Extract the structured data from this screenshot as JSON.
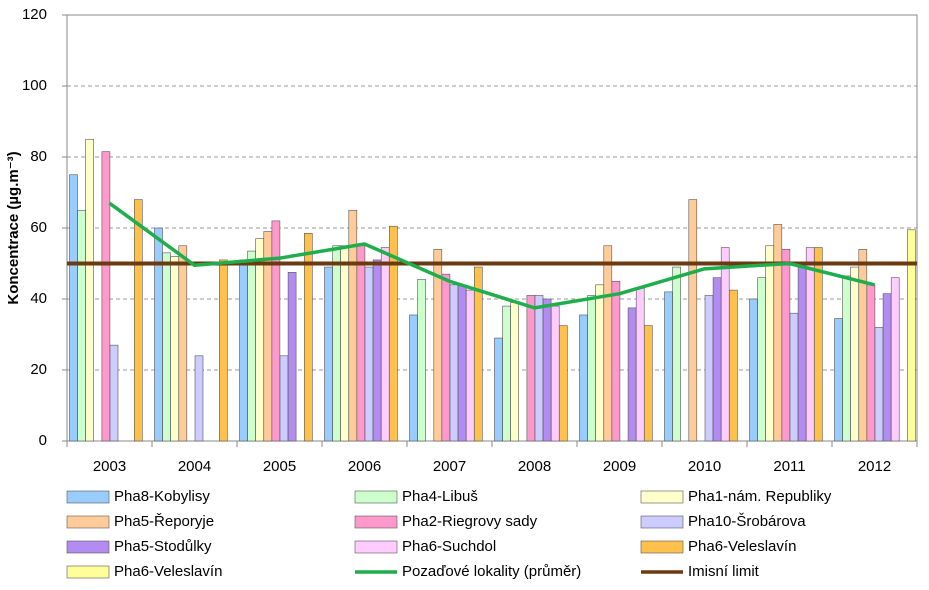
{
  "chart_data": {
    "type": "bar",
    "y_label": "Koncentrace (µg.m⁻³)",
    "categories": [
      "2003",
      "2004",
      "2005",
      "2006",
      "2007",
      "2008",
      "2009",
      "2010",
      "2011",
      "2012"
    ],
    "ylim": [
      0,
      120
    ],
    "yticks": [
      0,
      20,
      40,
      60,
      80,
      100,
      120
    ],
    "grid": true,
    "series": [
      {
        "name": "Pha8-Kobylisy",
        "color": "#99ccff",
        "values": [
          75,
          60,
          51,
          49,
          35.5,
          29,
          35.5,
          42,
          40,
          34.5
        ]
      },
      {
        "name": "Pha4-Libuš",
        "color": "#ccffcc",
        "values": [
          65,
          53,
          53.5,
          55,
          45.5,
          38,
          41,
          49,
          46,
          46.5
        ]
      },
      {
        "name": "Pha1-nám. Republiky",
        "color": "#ffffcc",
        "values": [
          85,
          52,
          57,
          55,
          null,
          39,
          44,
          null,
          55,
          49
        ]
      },
      {
        "name": "Pha5-Řeporyje",
        "color": "#ffcc99",
        "values": [
          null,
          55,
          59,
          65,
          54,
          null,
          55,
          68,
          61,
          54
        ]
      },
      {
        "name": "Pha2-Riegrovy sady",
        "color": "#ff99cc",
        "values": [
          81.5,
          null,
          62,
          55,
          47,
          41,
          45,
          null,
          54,
          44
        ]
      },
      {
        "name": "Pha10-Šrobárova",
        "color": "#ccccff",
        "values": [
          27,
          24,
          24,
          49,
          44,
          41,
          null,
          41,
          36,
          32
        ]
      },
      {
        "name": "Pha5-Stodůlky",
        "color": "#b38cf2",
        "values": [
          null,
          null,
          47.5,
          51,
          44,
          40,
          37.5,
          46,
          49,
          41.5
        ]
      },
      {
        "name": "Pha6-Suchdol",
        "color": "#ffccff",
        "values": [
          null,
          null,
          null,
          54.5,
          42.5,
          38,
          43,
          54.5,
          54.5,
          46
        ]
      },
      {
        "name": "Pha6-Veleslavín",
        "color": "#ffc04c",
        "values": [
          68,
          51,
          58.5,
          60.5,
          49,
          32.5,
          32.5,
          42.5,
          54.5,
          null
        ]
      },
      {
        "name": "Pha6-Veleslavín",
        "color": "#ffff99",
        "values": [
          null,
          null,
          null,
          null,
          null,
          null,
          null,
          null,
          null,
          59.5
        ]
      }
    ],
    "line": {
      "name": "Pozaďové lokality (průměr)",
      "color": "#1fae4b",
      "values": [
        67,
        49.5,
        51.5,
        55.5,
        45,
        37.5,
        41.5,
        48.5,
        50,
        44
      ]
    },
    "limit_line": {
      "name": "Imisní limit",
      "color": "#6b3a10",
      "value": 50
    }
  }
}
